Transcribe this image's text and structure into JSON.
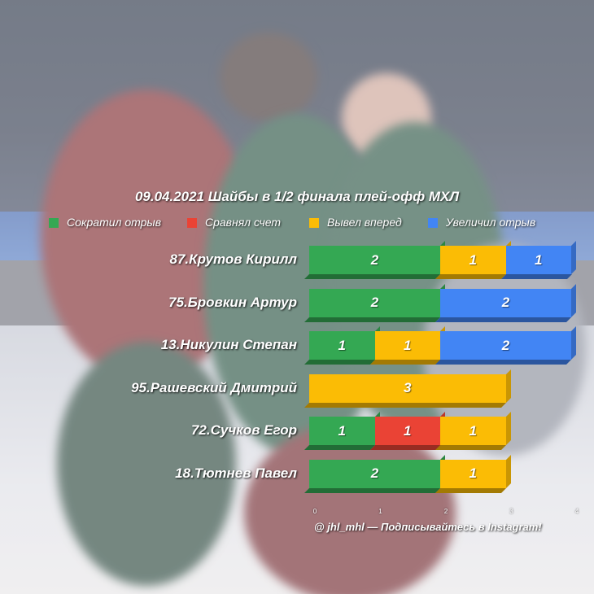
{
  "chart_data": {
    "type": "bar",
    "orientation": "horizontal",
    "stacked": true,
    "title": "09.04.2021 Шайбы в 1/2 финала плей-офф МХЛ",
    "categories": [
      "87.Крутов Кирилл",
      "75.Бровкин Артур",
      "13.Никулин Степан",
      "95.Рашевский Дмитрий",
      "72.Сучков Егор",
      "18.Тютнев Павел"
    ],
    "series": [
      {
        "name": "Сократил отрыв",
        "color": "#34a853",
        "values": [
          2,
          2,
          1,
          0,
          1,
          2
        ]
      },
      {
        "name": "Сравнял счет",
        "color": "#ea4335",
        "values": [
          0,
          0,
          0,
          0,
          1,
          0
        ]
      },
      {
        "name": "Вывел вперед",
        "color": "#fbbc05",
        "values": [
          1,
          0,
          1,
          3,
          1,
          1
        ]
      },
      {
        "name": "Увеличил отрыв",
        "color": "#4285f4",
        "values": [
          1,
          2,
          2,
          0,
          0,
          0
        ]
      }
    ],
    "xlim": [
      0,
      4
    ],
    "xticks": [
      "0",
      "1",
      "2",
      "3",
      "4"
    ],
    "legend_position": "top",
    "grid": false,
    "footer": "@ jhl_mhl — Подписывайтесь в Instagram!"
  }
}
